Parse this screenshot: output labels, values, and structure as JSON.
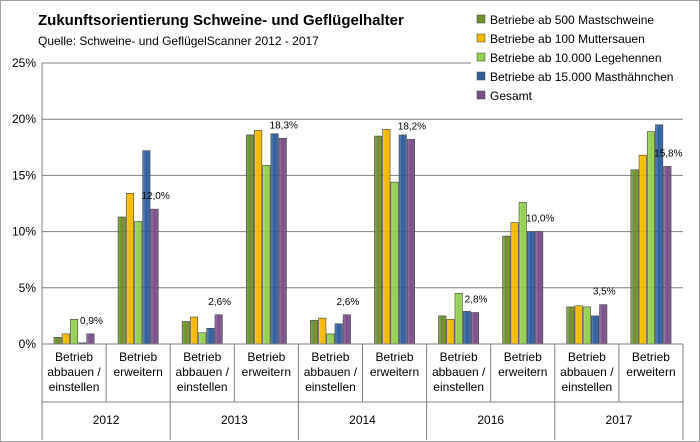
{
  "chart_data": {
    "type": "bar",
    "title": "Zukunftsorientierung Schweine- und Geflügelhalter",
    "subtitle": "Quelle: Schweine- und GeflügelScanner 2012 - 2017",
    "ylim": [
      0,
      25
    ],
    "yticks": [
      "0%",
      "5%",
      "10%",
      "15%",
      "20%",
      "25%"
    ],
    "grid": true,
    "legend_position": "top-right",
    "groups": [
      {
        "year": "2012",
        "categories": [
          {
            "label": [
              "Betrieb",
              "abbauen /",
              "einstellen"
            ],
            "values": [
              0.6,
              0.9,
              2.2,
              0.1,
              0.9
            ],
            "label_text": "0,9%"
          },
          {
            "label": [
              "Betrieb",
              "erweitern"
            ],
            "values": [
              11.3,
              13.4,
              10.9,
              17.2,
              12.0
            ],
            "label_text": "12,0%"
          }
        ]
      },
      {
        "year": "2013",
        "categories": [
          {
            "label": [
              "Betrieb",
              "abbauen /",
              "einstellen"
            ],
            "values": [
              2.0,
              2.4,
              1.0,
              1.4,
              2.6
            ],
            "label_text": "2,6%"
          },
          {
            "label": [
              "Betrieb",
              "erweitern"
            ],
            "values": [
              18.6,
              19.0,
              15.9,
              18.7,
              18.3
            ],
            "label_text": "18,3%"
          }
        ]
      },
      {
        "year": "2014",
        "categories": [
          {
            "label": [
              "Betrieb",
              "abbauen /",
              "einstellen"
            ],
            "values": [
              2.1,
              2.3,
              0.9,
              1.8,
              2.6
            ],
            "label_text": "2,6%"
          },
          {
            "label": [
              "Betrieb",
              "erweitern"
            ],
            "values": [
              18.5,
              19.1,
              14.4,
              18.6,
              18.2
            ],
            "label_text": "18,2%"
          }
        ]
      },
      {
        "year": "2016",
        "categories": [
          {
            "label": [
              "Betrieb",
              "abbauen /",
              "einstellen"
            ],
            "values": [
              2.5,
              2.2,
              4.5,
              2.9,
              2.8
            ],
            "label_text": "2,8%"
          },
          {
            "label": [
              "Betrieb",
              "erweitern"
            ],
            "values": [
              9.6,
              10.8,
              12.6,
              10.0,
              10.0
            ],
            "label_text": "10,0%"
          }
        ]
      },
      {
        "year": "2017",
        "categories": [
          {
            "label": [
              "Betrieb",
              "abbauen /",
              "einstellen"
            ],
            "values": [
              3.3,
              3.4,
              3.3,
              2.5,
              3.5
            ],
            "label_text": "3,5%"
          },
          {
            "label": [
              "Betrieb",
              "erweitern"
            ],
            "values": [
              15.5,
              16.8,
              18.9,
              19.5,
              15.8
            ],
            "label_text": "15,8%"
          }
        ]
      }
    ],
    "series": [
      {
        "name": "Betriebe ab 500 Mastschweine",
        "color": "#6f8f2e"
      },
      {
        "name": "Betriebe ab 100 Muttersauen",
        "color": "#f5b800"
      },
      {
        "name": "Betriebe ab 10.000 Legehennen",
        "color": "#92d050"
      },
      {
        "name": "Betriebe ab 15.000 Masthähnchen",
        "color": "#2e5f9e"
      },
      {
        "name": "Gesamt",
        "color": "#7a4e8c"
      }
    ]
  }
}
